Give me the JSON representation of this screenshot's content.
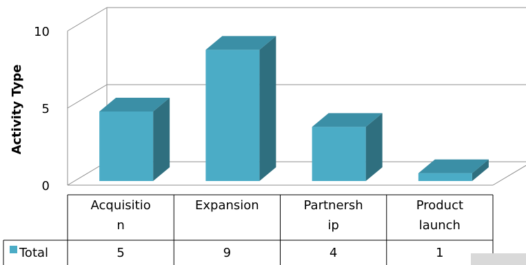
{
  "chart_data": {
    "type": "bar",
    "ylabel": "Activity Type",
    "ylim": [
      0,
      10
    ],
    "yticks": [
      "0",
      "5",
      "10"
    ],
    "categories": [
      [
        "Acquisitio",
        "n"
      ],
      [
        "Expansion"
      ],
      [
        "Partnersh",
        "ip"
      ],
      [
        "Product",
        "launch"
      ]
    ],
    "series": [
      {
        "name": "Total",
        "values": [
          5,
          9,
          4,
          1
        ],
        "value_labels": [
          "5",
          "9",
          "4",
          "1"
        ]
      }
    ],
    "bar_colors": {
      "front": "#4BACC6",
      "side": "#2F6F7F",
      "top": "#3B8FA6"
    },
    "grid": true,
    "legend": "data-table"
  }
}
